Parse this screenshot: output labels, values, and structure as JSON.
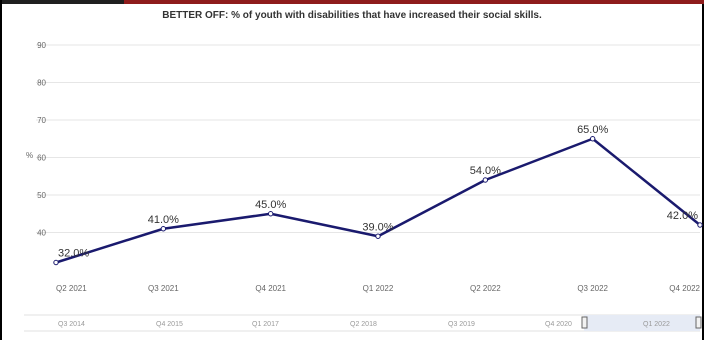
{
  "chart_data": {
    "type": "line",
    "title": "BETTER OFF: % of youth with disabilities that have increased their social skills.",
    "xlabel": "",
    "ylabel": "%",
    "categories": [
      "Q2 2021",
      "Q3 2021",
      "Q4 2021",
      "Q1 2022",
      "Q2 2022",
      "Q3 2022",
      "Q4 2022"
    ],
    "series": [
      {
        "values": [
          32.0,
          41.0,
          45.0,
          39.0,
          54.0,
          65.0,
          42.0
        ],
        "data_labels": [
          "32.0%",
          "41.0%",
          "45.0%",
          "39.0%",
          "54.0%",
          "65.0%",
          "42.0%"
        ],
        "color": "#1a1a6e"
      }
    ],
    "ylim": [
      30,
      90
    ],
    "yticks": [
      40,
      50,
      60,
      70,
      80,
      90
    ],
    "grid": true,
    "navigator_labels": [
      "Q3 2014",
      "Q4 2015",
      "Q1 2017",
      "Q2 2018",
      "Q3 2019",
      "Q4 2020",
      "Q1 2022"
    ]
  },
  "colors": {
    "line": "#1a1a6e",
    "grid": "#e6e6e6",
    "navigator_selection": "#e6ebf5"
  }
}
